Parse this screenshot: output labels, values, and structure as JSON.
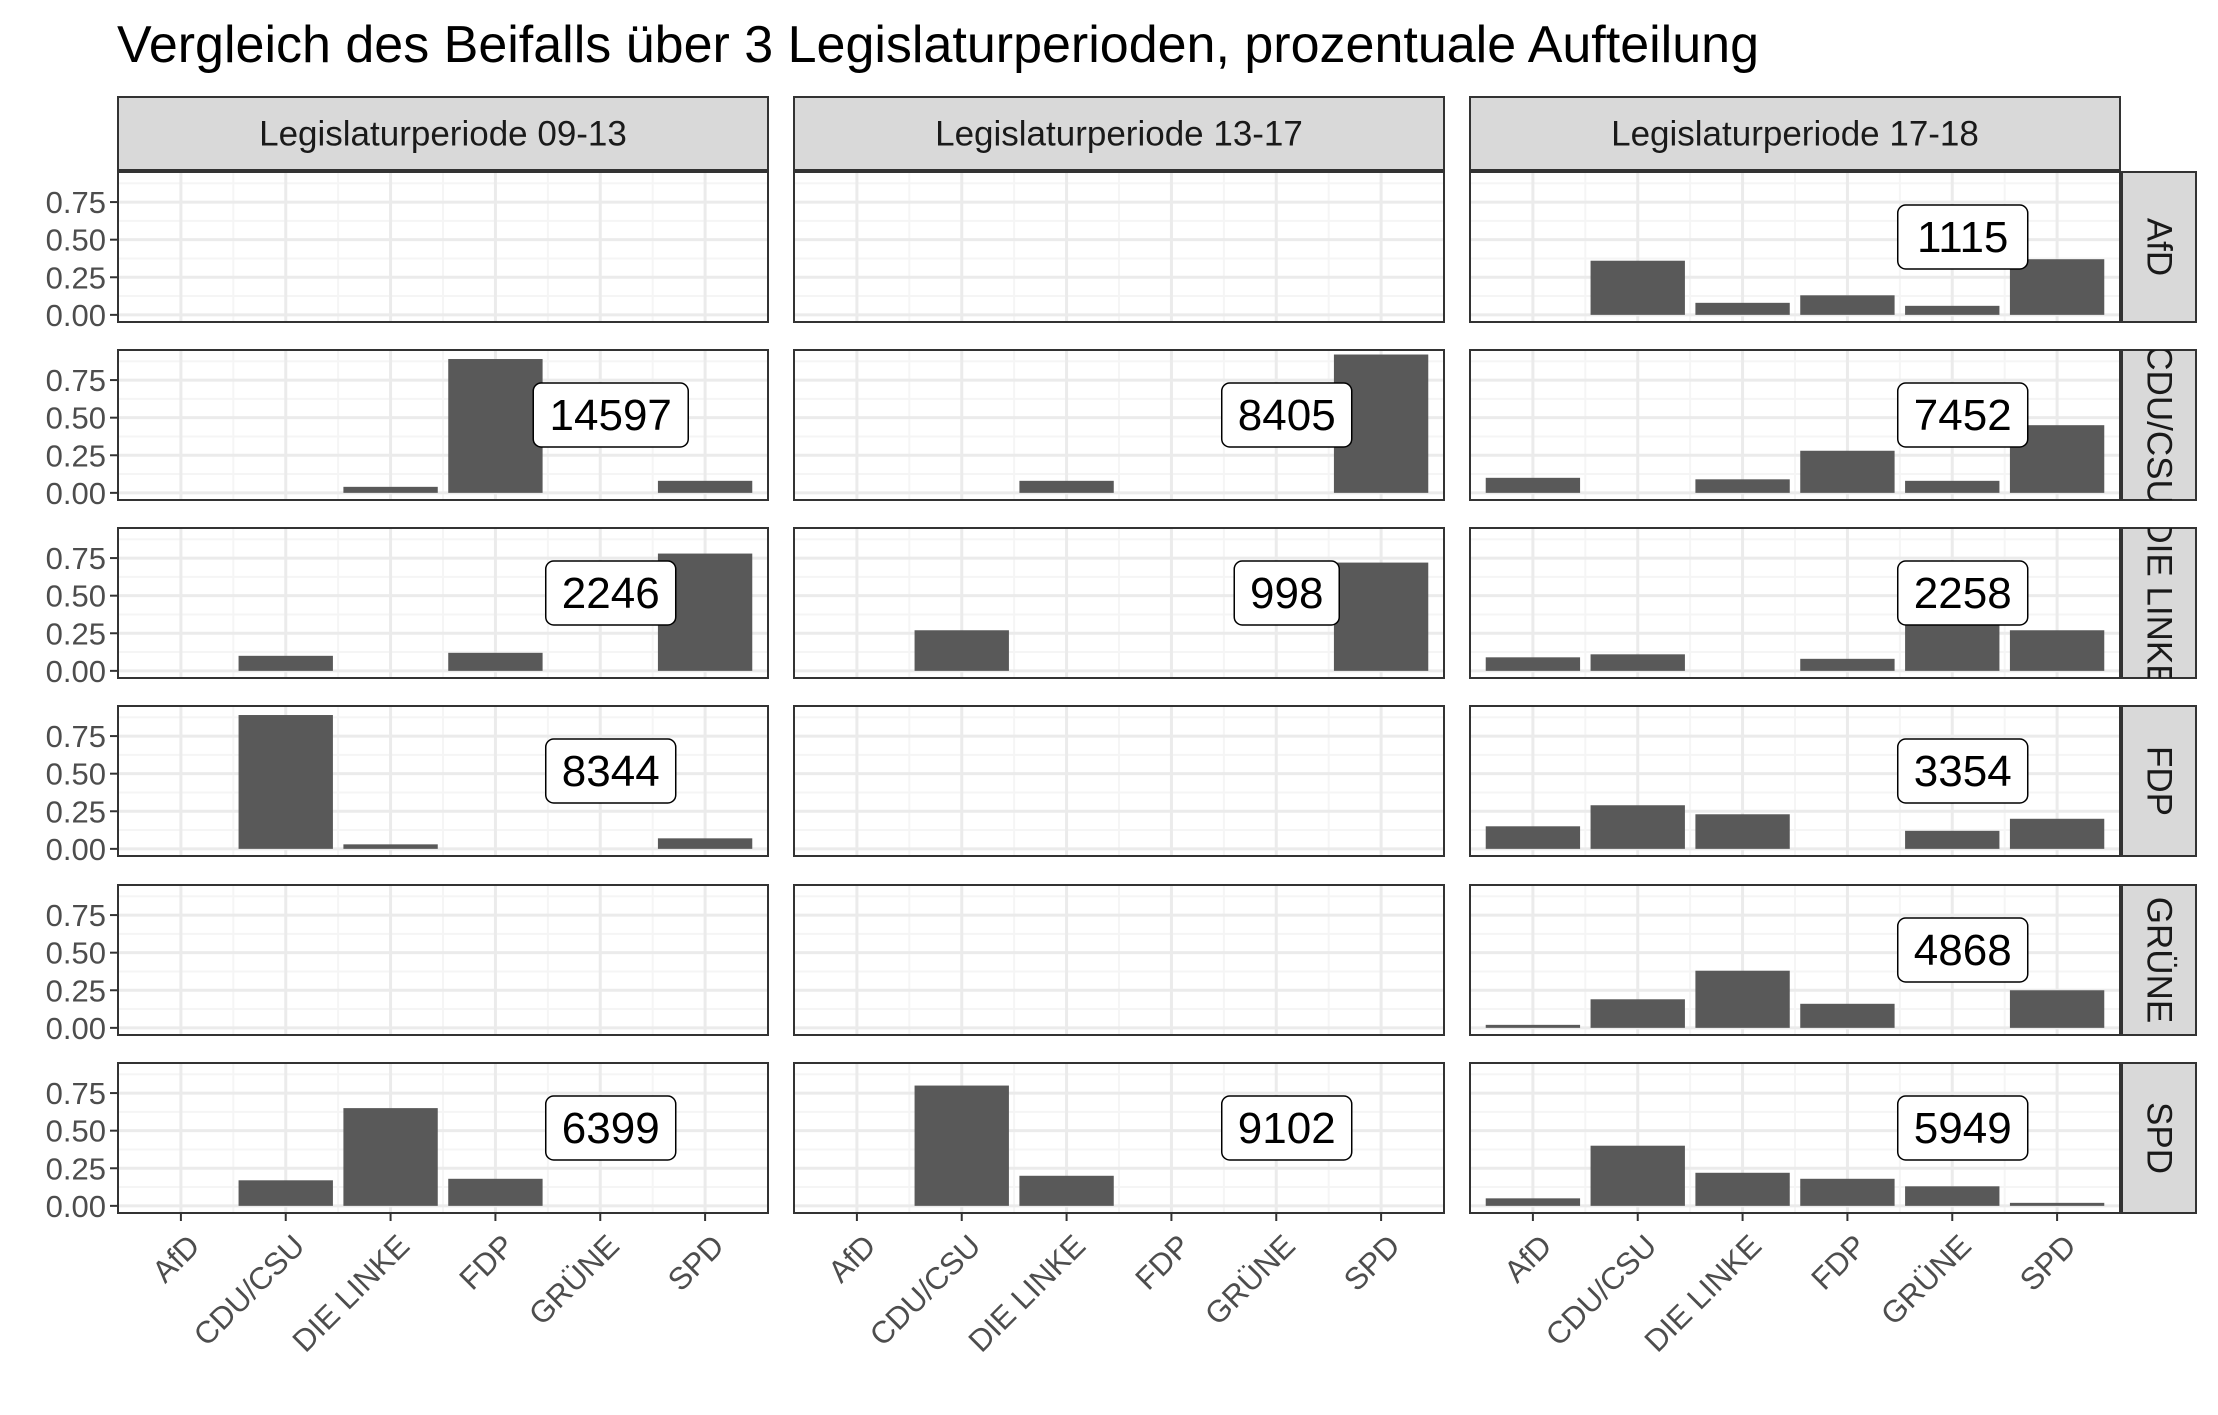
{
  "chart_data": {
    "type": "bar",
    "title": "Vergleich des Beifalls über 3 Legislaturperioden, prozentuale Aufteilung",
    "xlabel": "",
    "ylabel": "",
    "ylim": [
      0,
      0.95
    ],
    "y_ticks": [
      0,
      0.25,
      0.5,
      0.75
    ],
    "y_tick_labels": [
      "0.00",
      "0.25",
      "0.50",
      "0.75"
    ],
    "grid": true,
    "categories": [
      "AfD",
      "CDU/CSU",
      "DIE LINKE",
      "FDP",
      "GRÜNE",
      "SPD"
    ],
    "columns": [
      "Legislaturperiode 09-13",
      "Legislaturperiode 13-17",
      "Legislaturperiode 17-18"
    ],
    "rows": [
      "AfD",
      "CDU/CSU",
      "DIE LINKE",
      "FDP",
      "GRÜNE",
      "SPD"
    ],
    "panels": [
      [
        {
          "values": [
            0,
            0,
            0,
            0,
            0,
            0
          ],
          "label": ""
        },
        {
          "values": [
            0,
            0,
            0,
            0,
            0,
            0
          ],
          "label": ""
        },
        {
          "values": [
            0,
            0.36,
            0.08,
            0.13,
            0.06,
            0.37
          ],
          "label": "1115"
        }
      ],
      [
        {
          "values": [
            0,
            0,
            0.04,
            0.89,
            0,
            0.08
          ],
          "label": "14597"
        },
        {
          "values": [
            0,
            0,
            0.08,
            0,
            0,
            0.92
          ],
          "label": "8405"
        },
        {
          "values": [
            0.1,
            0,
            0.09,
            0.28,
            0.08,
            0.45
          ],
          "label": "7452"
        }
      ],
      [
        {
          "values": [
            0,
            0.1,
            0,
            0.12,
            0,
            0.78
          ],
          "label": "2246"
        },
        {
          "values": [
            0,
            0.27,
            0,
            0,
            0,
            0.72
          ],
          "label": "998"
        },
        {
          "values": [
            0.09,
            0.11,
            0,
            0.08,
            0.45,
            0.27
          ],
          "label": "2258"
        }
      ],
      [
        {
          "values": [
            0,
            0.89,
            0.03,
            0,
            0,
            0.07
          ],
          "label": "8344"
        },
        {
          "values": [
            0,
            0,
            0,
            0,
            0,
            0
          ],
          "label": ""
        },
        {
          "values": [
            0.15,
            0.29,
            0.23,
            0,
            0.12,
            0.2
          ],
          "label": "3354"
        }
      ],
      [
        {
          "values": [
            0,
            0,
            0,
            0,
            0,
            0
          ],
          "label": ""
        },
        {
          "values": [
            0,
            0,
            0,
            0,
            0,
            0
          ],
          "label": ""
        },
        {
          "values": [
            0.02,
            0.19,
            0.38,
            0.16,
            0,
            0.25
          ],
          "label": "4868"
        }
      ],
      [
        {
          "values": [
            0,
            0.17,
            0.65,
            0.18,
            0,
            0
          ],
          "label": "6399"
        },
        {
          "values": [
            0,
            0.8,
            0.2,
            0,
            0,
            0
          ],
          "label": "9102"
        },
        {
          "values": [
            0.05,
            0.4,
            0.22,
            0.18,
            0.13,
            0.02
          ],
          "label": "5949"
        }
      ]
    ],
    "colors": {
      "bar": "#595959",
      "strip_fill": "#d9d9d9",
      "grid_major": "#ebebeb",
      "grid_minor": "#f5f5f5",
      "panel_border": "#333333",
      "tick_text": "#4d4d4d"
    }
  }
}
